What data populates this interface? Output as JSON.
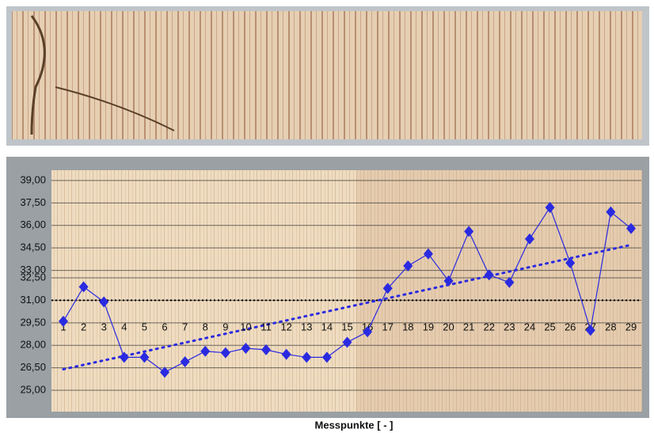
{
  "chart_data": {
    "type": "line",
    "x_label": "Messpunkte [ - ]",
    "categories": [
      "1",
      "2",
      "3",
      "4",
      "5",
      "6",
      "7",
      "8",
      "9",
      "10",
      "11",
      "12",
      "13",
      "14",
      "15",
      "16",
      "17",
      "18",
      "19",
      "20",
      "21",
      "22",
      "23",
      "24",
      "25",
      "26",
      "27",
      "28",
      "29"
    ],
    "series": [
      {
        "color": "#2a2ae0",
        "values": [
          29.6,
          31.9,
          30.9,
          27.2,
          27.2,
          26.2,
          26.9,
          27.6,
          27.5,
          27.8,
          27.7,
          27.4,
          27.2,
          27.2,
          28.2,
          28.9,
          31.8,
          33.3,
          34.1,
          32.3,
          35.6,
          32.7,
          32.2,
          35.1,
          37.2,
          33.5,
          29.0,
          36.9,
          35.8
        ]
      }
    ],
    "trendline": {
      "color": "#2a2ae0",
      "values": [
        26.4,
        34.7
      ]
    },
    "reference_line": 31,
    "ylim": [
      25,
      39
    ],
    "yticks": [
      {
        "value": 39,
        "label": "39,00"
      },
      {
        "value": 37.5,
        "label": "37,50"
      },
      {
        "value": 36,
        "label": "36,00"
      },
      {
        "value": 34.5,
        "label": "34,50"
      },
      {
        "value": 33,
        "label": "33,00"
      },
      {
        "value": 32.5,
        "label": "32,50"
      },
      {
        "value": 31,
        "label": "31,00"
      },
      {
        "value": 29.5,
        "label": "29,50"
      },
      {
        "value": 28,
        "label": "28,00"
      },
      {
        "value": 26.5,
        "label": "26,50"
      },
      {
        "value": 25,
        "label": "25,00"
      }
    ],
    "grid": true
  }
}
